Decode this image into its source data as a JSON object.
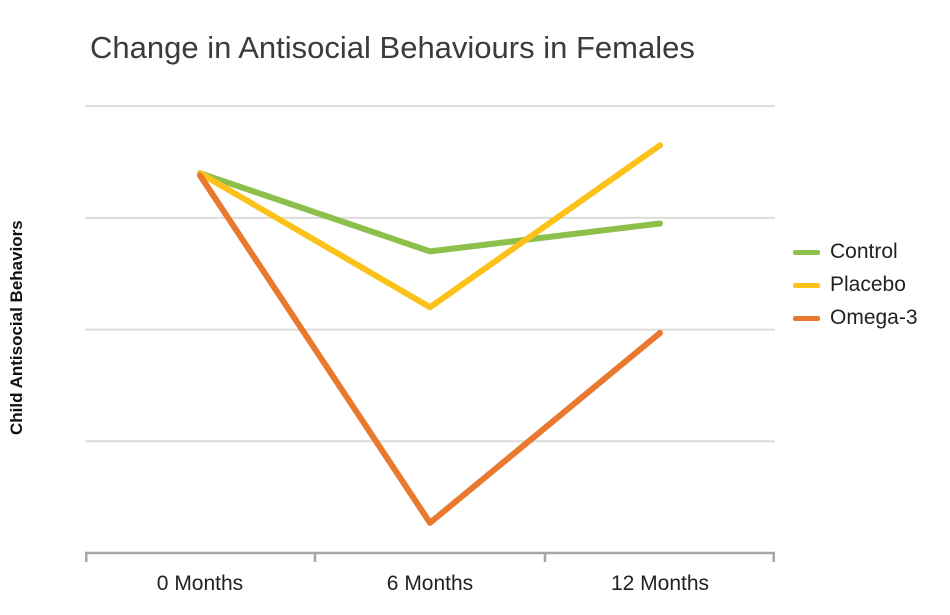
{
  "page": {
    "background": "#ffffff"
  },
  "chart_data": {
    "type": "line",
    "title": "Change in Antisocial Behaviours in Females",
    "ylabel": "Child Antisocial Behaviors",
    "xlabel": "",
    "categories": [
      "0 Months",
      "6 Months",
      "12 Months"
    ],
    "series": [
      {
        "name": "Control",
        "color": "#8dc04a",
        "values": [
          3.4,
          2.7,
          2.95
        ]
      },
      {
        "name": "Placebo",
        "color": "#fcc219",
        "values": [
          3.4,
          2.2,
          3.65
        ]
      },
      {
        "name": "Omega-3",
        "color": "#e8792e",
        "values": [
          3.38,
          0.27,
          1.97
        ]
      }
    ],
    "ylim": [
      0,
      4.1
    ],
    "yticks_shown": false,
    "gridline_values": [
      1,
      2,
      3,
      4
    ],
    "grid": "horizontal",
    "legend_position": "right",
    "axis_color": "#a6a6a6",
    "gridline_color": "#dcdcdc",
    "line_width": 6
  }
}
